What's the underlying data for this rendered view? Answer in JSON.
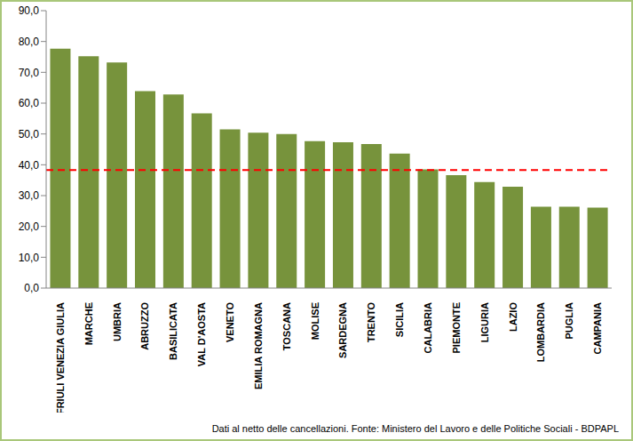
{
  "chart_data": {
    "type": "bar",
    "categories": [
      "FRIULI VENEZIA  GIULIA",
      "MARCHE",
      "UMBRIA",
      "ABRUZZO",
      "BASILICATA",
      "VAL D'AOSTA",
      "VENETO",
      "EMILIA ROMAGNA",
      "TOSCANA",
      "MOLISE",
      "SARDEGNA",
      "TRENTO",
      "SICILIA",
      "CALABRIA",
      "PIEMONTE",
      "LIGURIA",
      "LAZIO",
      "LOMBARDIA",
      "PUGLIA",
      "CAMPANIA"
    ],
    "values": [
      77.7,
      75.2,
      73.2,
      63.9,
      62.8,
      56.7,
      51.5,
      50.4,
      50.0,
      47.7,
      47.3,
      46.7,
      43.6,
      38.5,
      36.6,
      34.4,
      32.9,
      26.4,
      26.4,
      26.1
    ],
    "color": "#77933c",
    "ylim": [
      0,
      90
    ],
    "yticks": [
      {
        "value": 0,
        "label": "0,0"
      },
      {
        "value": 10,
        "label": "10,0"
      },
      {
        "value": 20,
        "label": "20,0"
      },
      {
        "value": 30,
        "label": "30,0"
      },
      {
        "value": 40,
        "label": "40,0"
      },
      {
        "value": 50,
        "label": "50,0"
      },
      {
        "value": 60,
        "label": "60,0"
      },
      {
        "value": 70,
        "label": "70,0"
      },
      {
        "value": 80,
        "label": "80,0"
      },
      {
        "value": 90,
        "label": "90,0"
      }
    ],
    "grid": false,
    "reference_line": {
      "value": 38.3,
      "color": "#ff0000",
      "line_style": "dashed"
    },
    "annotations": [
      "Dati al netto delle cancellazioni. Fonte: Ministero del Lavoro e delle Politiche Sociali - BDPAPL"
    ]
  }
}
